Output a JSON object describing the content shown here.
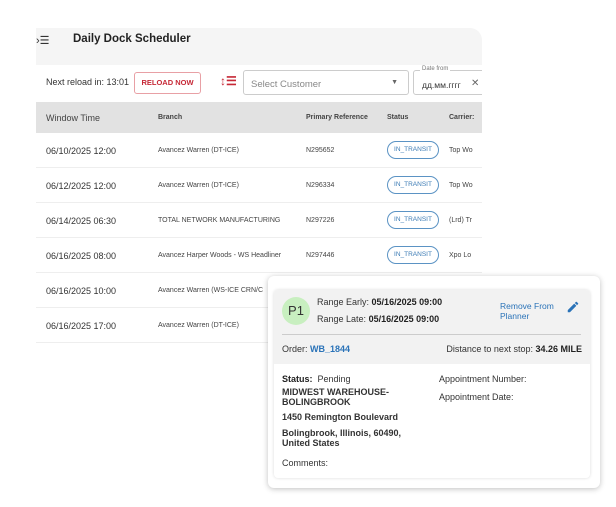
{
  "header": {
    "title": "Daily Dock Scheduler",
    "menu_icon": "menu-collapse-icon"
  },
  "toolbar": {
    "next_reload": "Next reload in: 13:01",
    "reload_button": "RELOAD NOW",
    "sort_icon": "sort-list-icon",
    "customer_placeholder": "Select Customer",
    "date_label": "Date from",
    "date_value": "дд.мм.гггг",
    "clear": "✕"
  },
  "table": {
    "columns": [
      "Window Time",
      "Branch",
      "Primary Reference",
      "Status",
      "Carrier:"
    ],
    "rows": [
      {
        "time": "06/10/2025 12:00",
        "branch": "Avancez Warren (DT-ICE)",
        "ref": "N295652",
        "status": "IN_TRANSIT",
        "carrier": "Top Wo"
      },
      {
        "time": "06/12/2025 12:00",
        "branch": "Avancez Warren (DT-ICE)",
        "ref": "N296334",
        "status": "IN_TRANSIT",
        "carrier": "Top Wo"
      },
      {
        "time": "06/14/2025 06:30",
        "branch": "TOTAL NETWORK MANUFACTURING",
        "ref": "N297226",
        "status": "IN_TRANSIT",
        "carrier": "(Lrd) Tr"
      },
      {
        "time": "06/16/2025 08:00",
        "branch": "Avancez Harper Woods - WS Headliner",
        "ref": "N297446",
        "status": "IN_TRANSIT",
        "carrier": "Xpo Lo"
      },
      {
        "time": "06/16/2025 10:00",
        "branch": "Avancez Warren (WS-ICE CRN/C"
      },
      {
        "time": "06/16/2025 17:00",
        "branch": "Avancez Warren (DT-ICE)"
      }
    ]
  },
  "popup": {
    "badge": "P1",
    "range_early_label": "Range Early:",
    "range_early": "05/16/2025 09:00",
    "range_late_label": "Range Late:",
    "range_late": "05/16/2025 09:00",
    "remove_link": "Remove From Planner",
    "order_label": "Order:",
    "order": "WB_1844",
    "distance_label": "Distance to next stop:",
    "distance": "34.26 MILE",
    "status_label": "Status:",
    "status": "Pending",
    "location": "MIDWEST WAREHOUSE-BOLINGBROOK",
    "street": "1450 Remington Boulevard",
    "city": "Bolingbrook, Illinois, 60490, United States",
    "comments_label": "Comments:",
    "appt_number_label": "Appointment Number:",
    "appt_date_label": "Appointment Date:",
    "colors": {
      "accent": "#c62836",
      "link": "#2a73b8",
      "badge": "#c8efc0"
    }
  }
}
